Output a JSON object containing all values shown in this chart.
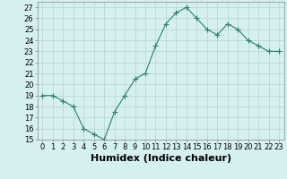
{
  "x": [
    0,
    1,
    2,
    3,
    4,
    5,
    6,
    7,
    8,
    9,
    10,
    11,
    12,
    13,
    14,
    15,
    16,
    17,
    18,
    19,
    20,
    21,
    22,
    23
  ],
  "y": [
    19.0,
    19.0,
    18.5,
    18.0,
    16.0,
    15.5,
    15.0,
    17.5,
    19.0,
    20.5,
    21.0,
    23.5,
    25.5,
    26.5,
    27.0,
    26.0,
    25.0,
    24.5,
    25.5,
    25.0,
    24.0,
    23.5,
    23.0,
    23.0
  ],
  "line_color": "#2e7d6e",
  "marker": "+",
  "marker_size": 4,
  "bg_color": "#d6f0f0",
  "grid_color": "#b8d8d8",
  "xlabel": "Humidex (Indice chaleur)",
  "xlim": [
    -0.5,
    23.5
  ],
  "ylim": [
    15,
    27.5
  ],
  "yticks": [
    15,
    16,
    17,
    18,
    19,
    20,
    21,
    22,
    23,
    24,
    25,
    26,
    27
  ],
  "xticks": [
    0,
    1,
    2,
    3,
    4,
    5,
    6,
    7,
    8,
    9,
    10,
    11,
    12,
    13,
    14,
    15,
    16,
    17,
    18,
    19,
    20,
    21,
    22,
    23
  ],
  "xtick_labels": [
    "0",
    "1",
    "2",
    "3",
    "4",
    "5",
    "6",
    "7",
    "8",
    "9",
    "10",
    "11",
    "12",
    "13",
    "14",
    "15",
    "16",
    "17",
    "18",
    "19",
    "20",
    "21",
    "22",
    "23"
  ],
  "tick_fontsize": 6,
  "xlabel_fontsize": 8
}
